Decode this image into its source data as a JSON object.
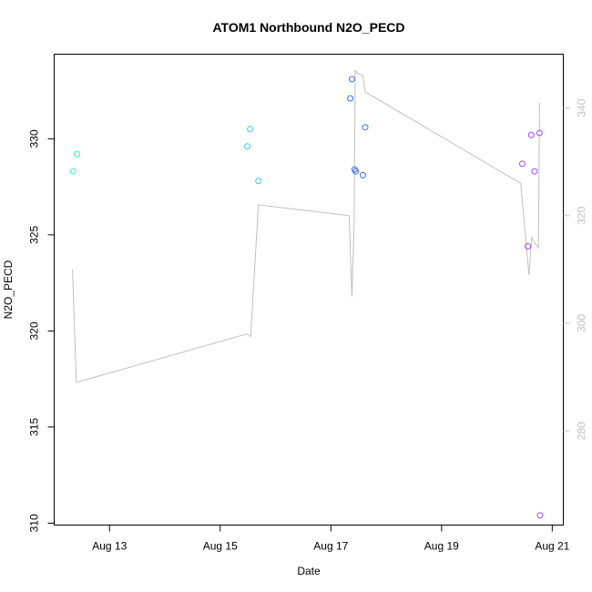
{
  "chart_data": {
    "type": "scatter",
    "title": "ATOM1 Northbound N2O_PECD",
    "xlabel": "Date",
    "ylabel": "N2O_PECD",
    "x_ticks": [
      {
        "day": 13,
        "label": "Aug 13"
      },
      {
        "day": 15,
        "label": "Aug 15"
      },
      {
        "day": 17,
        "label": "Aug 17"
      },
      {
        "day": 19,
        "label": "Aug 19"
      },
      {
        "day": 21,
        "label": "Aug 21"
      }
    ],
    "xlim": [
      12.0,
      21.2
    ],
    "ylim": [
      309.9,
      334.4
    ],
    "y_ticks": [
      310,
      315,
      320,
      325,
      330
    ],
    "y2_ticks": [
      280,
      300,
      320,
      340
    ],
    "y2lim": [
      262.5,
      350.0
    ],
    "points": [
      {
        "date": "Aug 12.34",
        "x": 12.34,
        "y": 328.3,
        "color": "#40f0b0"
      },
      {
        "date": "Aug 12.41",
        "x": 12.41,
        "y": 329.2,
        "color": "#40f0b0"
      },
      {
        "date": "Aug 15.49",
        "x": 15.49,
        "y": 329.6,
        "color": "#30c8e8"
      },
      {
        "date": "Aug 15.54",
        "x": 15.54,
        "y": 330.5,
        "color": "#30c8e8"
      },
      {
        "date": "Aug 15.69",
        "x": 15.69,
        "y": 327.8,
        "color": "#30c8e8"
      },
      {
        "date": "Aug 17.35",
        "x": 17.35,
        "y": 332.1,
        "color": "#3a6cf0"
      },
      {
        "date": "Aug 17.38",
        "x": 17.38,
        "y": 333.1,
        "color": "#3a6cf0"
      },
      {
        "date": "Aug 17.43",
        "x": 17.43,
        "y": 328.4,
        "color": "#3a6cf0"
      },
      {
        "date": "Aug 17.45",
        "x": 17.45,
        "y": 328.3,
        "color": "#3a6cf0"
      },
      {
        "date": "Aug 17.58",
        "x": 17.58,
        "y": 328.1,
        "color": "#3a6cf0"
      },
      {
        "date": "Aug 17.62",
        "x": 17.62,
        "y": 330.6,
        "color": "#3a6cf0"
      },
      {
        "date": "Aug 20.46",
        "x": 20.46,
        "y": 328.7,
        "color": "#9a4cf0"
      },
      {
        "date": "Aug 20.56",
        "x": 20.56,
        "y": 324.4,
        "color": "#9a4cf0"
      },
      {
        "date": "Aug 20.62",
        "x": 20.62,
        "y": 330.2,
        "color": "#9a4cf0"
      },
      {
        "date": "Aug 20.68",
        "x": 20.68,
        "y": 328.3,
        "color": "#9a4cf0"
      },
      {
        "date": "Aug 20.77",
        "x": 20.77,
        "y": 330.3,
        "color": "#9a4cf0"
      },
      {
        "date": "Aug 20.78",
        "x": 20.78,
        "y": 310.4,
        "color": "#9a4cf0"
      }
    ],
    "line_series": {
      "color": "#c0c0c0",
      "axis": "right",
      "x": [
        12.33,
        12.4,
        15.48,
        15.55,
        15.69,
        17.33,
        17.38,
        17.42,
        17.44,
        17.47,
        17.58,
        17.62,
        20.43,
        20.58,
        20.63,
        20.68,
        20.75,
        20.77
      ],
      "y": [
        310,
        289,
        298,
        297.5,
        322,
        320,
        305,
        318,
        347,
        346.5,
        346,
        343,
        326,
        309,
        316,
        315,
        314,
        341
      ]
    },
    "grid": false
  }
}
